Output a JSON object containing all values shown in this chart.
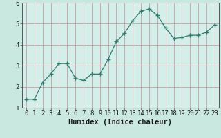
{
  "x": [
    0,
    1,
    2,
    3,
    4,
    5,
    6,
    7,
    8,
    9,
    10,
    11,
    12,
    13,
    14,
    15,
    16,
    17,
    18,
    19,
    20,
    21,
    22,
    23
  ],
  "y": [
    1.4,
    1.4,
    2.2,
    2.6,
    3.1,
    3.1,
    2.4,
    2.3,
    2.6,
    2.6,
    3.3,
    4.15,
    4.55,
    5.15,
    5.6,
    5.7,
    5.4,
    4.8,
    4.3,
    4.35,
    4.45,
    4.45,
    4.6,
    4.95
  ],
  "line_color": "#2e7d6e",
  "marker": "+",
  "marker_size": 4,
  "background_color": "#c8e8e0",
  "grid_major_color": "#c4a0a0",
  "grid_minor_color": "#d4c0bc",
  "axis_bg": "#d4eeea",
  "xlabel": "Humidex (Indice chaleur)",
  "ylim": [
    1,
    6
  ],
  "xlim": [
    -0.5,
    23.5
  ],
  "yticks": [
    1,
    2,
    3,
    4,
    5,
    6
  ],
  "xticks": [
    0,
    1,
    2,
    3,
    4,
    5,
    6,
    7,
    8,
    9,
    10,
    11,
    12,
    13,
    14,
    15,
    16,
    17,
    18,
    19,
    20,
    21,
    22,
    23
  ],
  "tick_fontsize": 6.5,
  "label_fontsize": 7.5
}
